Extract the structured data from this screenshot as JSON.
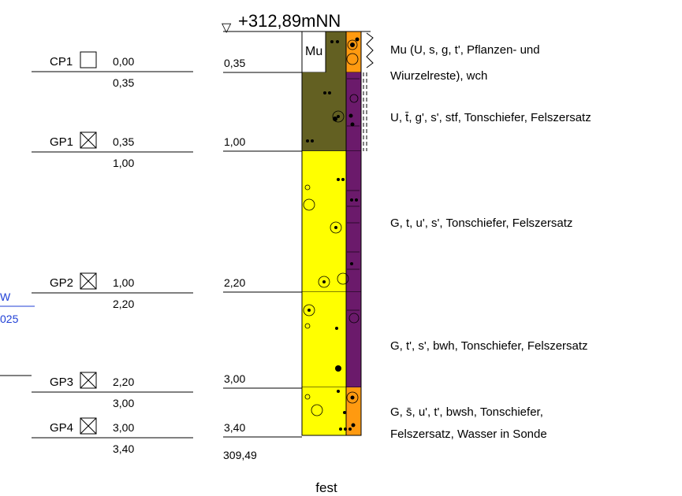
{
  "head": {
    "symbol": "▽",
    "elevation": "+312,89mNN"
  },
  "bottom": {
    "elevation": "309,49",
    "note": "fest"
  },
  "samples": [
    {
      "id": "CP1",
      "kind": "open",
      "top": "0,00",
      "bottom": "0,35"
    },
    {
      "id": "GP1",
      "kind": "crossed",
      "top": "0,35",
      "bottom": "1,00"
    },
    {
      "id": "GP2",
      "kind": "crossed",
      "top": "1,00",
      "bottom": "2,20"
    },
    {
      "id": "GP3",
      "kind": "crossed",
      "top": "2,20",
      "bottom": "3,00"
    },
    {
      "id": "GP4",
      "kind": "crossed",
      "top": "3,00",
      "bottom": "3,40"
    }
  ],
  "depths": [
    "0,35",
    "1,00",
    "2,20",
    "3,00",
    "3,40"
  ],
  "layers": [
    {
      "top_m": 0.0,
      "bottom_m": 0.35,
      "code": "Mu",
      "color": "#ffffff",
      "right_color": "#ff9a10",
      "desc": [
        "Mu (U, s, g, t', Pflanzen- und",
        "Wiurzelreste), wch"
      ]
    },
    {
      "top_m": 0.35,
      "bottom_m": 1.0,
      "code": "",
      "color": "#636022",
      "right_color": "#6b1a6b",
      "desc": [
        "U, t̄, g', s', stf, Tonschiefer, Felszersatz"
      ]
    },
    {
      "top_m": 1.0,
      "bottom_m": 2.2,
      "code": "",
      "color": "#ffff00",
      "right_color": "#6b1a6b",
      "desc": [
        "G, t, u', s', Tonschiefer, Felszersatz"
      ]
    },
    {
      "top_m": 2.2,
      "bottom_m": 3.0,
      "code": "",
      "color": "#ffff00",
      "right_color": "#6b1a6b",
      "desc": [
        "G, t', s', bwh, Tonschiefer, Felszersatz"
      ]
    },
    {
      "top_m": 3.0,
      "bottom_m": 3.4,
      "code": "",
      "color": "#ffff00",
      "right_color": "#ff9a10",
      "desc": [
        "G, s̄, u', t', bwsh, Tonschiefer,",
        "Felszersatz, Wasser in Sonde"
      ]
    }
  ],
  "side_labels": {
    "blue_top": "W",
    "blue_bottom": "025"
  },
  "colors": {
    "blue": "#1f3fd6"
  }
}
